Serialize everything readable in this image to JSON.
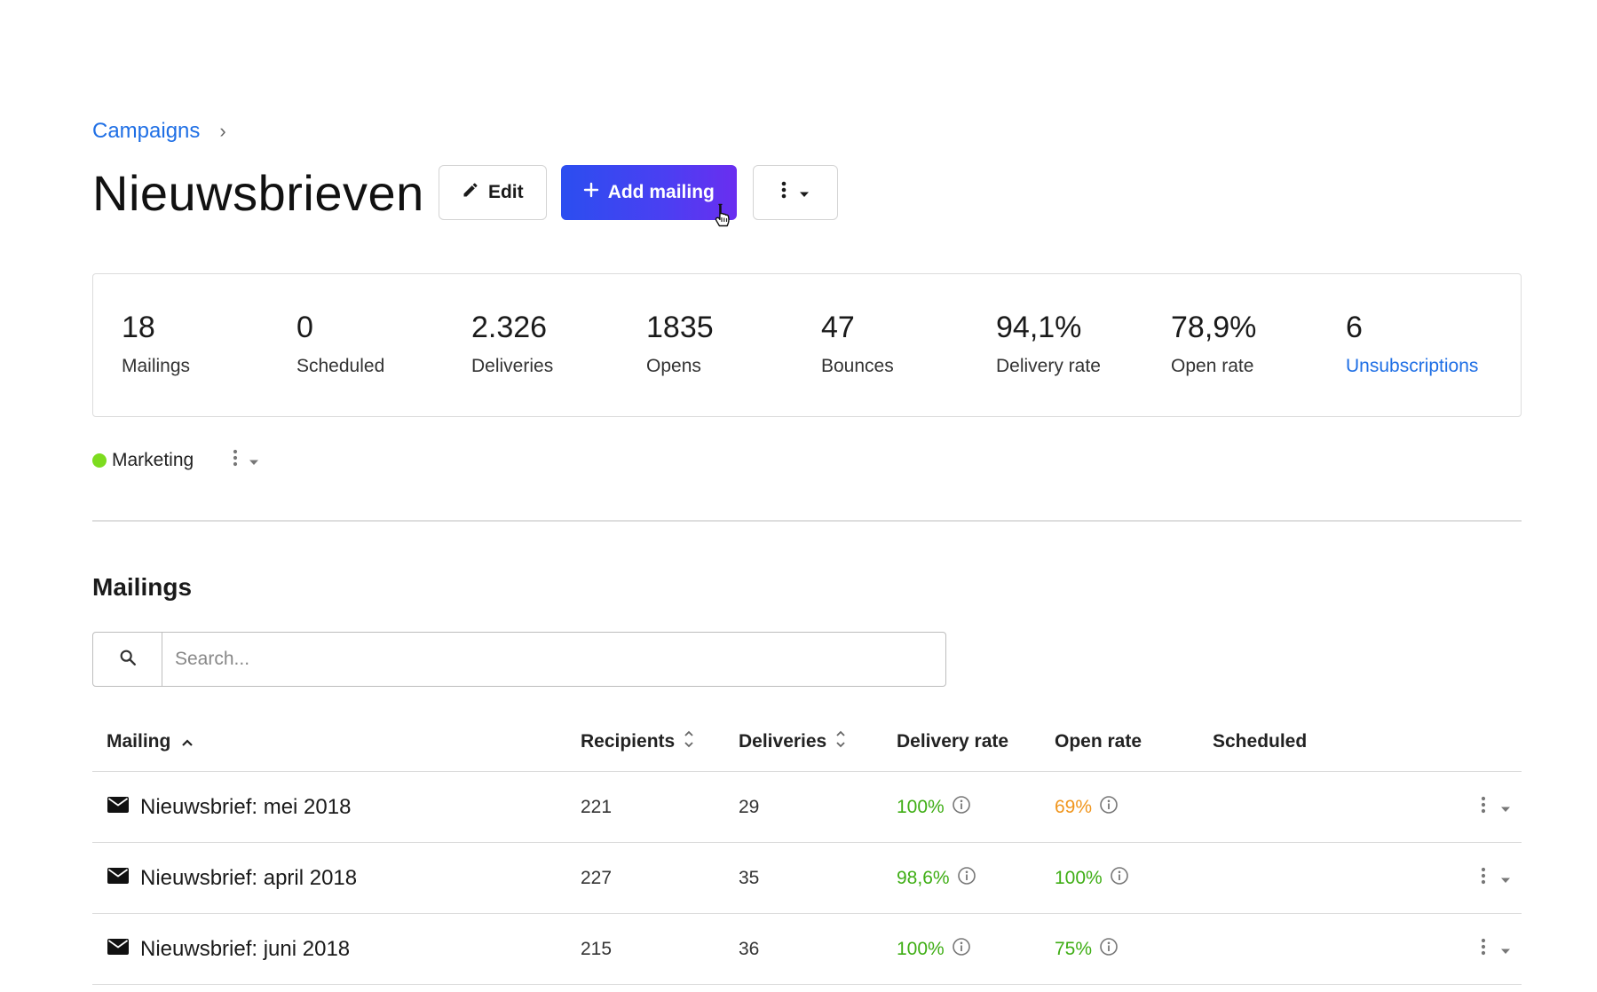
{
  "breadcrumb": {
    "link": "Campaigns",
    "separator": "›"
  },
  "header": {
    "title": "Nieuwsbrieven",
    "edit_label": "Edit",
    "add_label": "Add mailing"
  },
  "stats": [
    {
      "value": "18",
      "label": "Mailings"
    },
    {
      "value": "0",
      "label": "Scheduled"
    },
    {
      "value": "2.326",
      "label": "Deliveries"
    },
    {
      "value": "1835",
      "label": "Opens"
    },
    {
      "value": "47",
      "label": "Bounces"
    },
    {
      "value": "94,1%",
      "label": "Delivery rate"
    },
    {
      "value": "78,9%",
      "label": "Open rate"
    },
    {
      "value": "6",
      "label": "Unsubscriptions"
    }
  ],
  "tag": {
    "label": "Marketing",
    "color": "#7ddc1f"
  },
  "mailings": {
    "title": "Mailings",
    "search_placeholder": "Search...",
    "columns": {
      "mailing": "Mailing",
      "recipients": "Recipients",
      "deliveries": "Deliveries",
      "delivery_rate": "Delivery rate",
      "open_rate": "Open rate",
      "scheduled": "Scheduled"
    },
    "rows": [
      {
        "name": "Nieuwsbrief: mei 2018",
        "recipients": "221",
        "deliveries": "29",
        "delivery_rate": "100%",
        "open_rate": "69%",
        "scheduled": ""
      },
      {
        "name": "Nieuwsbrief: april 2018",
        "recipients": "227",
        "deliveries": "35",
        "delivery_rate": "98,6%",
        "open_rate": "100%",
        "scheduled": ""
      },
      {
        "name": "Nieuwsbrief: juni 2018",
        "recipients": "215",
        "deliveries": "36",
        "delivery_rate": "100%",
        "open_rate": "75%",
        "scheduled": ""
      }
    ]
  },
  "colors": {
    "link": "#1f6fe5",
    "accent_start": "#2b4ef0",
    "accent_end": "#6a2ef0",
    "success": "#3fae15",
    "warning": "#f0961e",
    "tag_marketing": "#7ddc1f"
  }
}
